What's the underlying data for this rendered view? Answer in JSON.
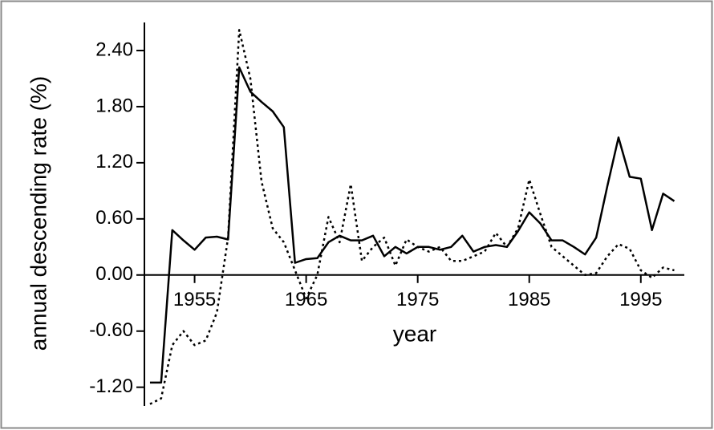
{
  "chart_data": {
    "type": "line",
    "xlabel": "year",
    "ylabel": "annual descending rate (%)",
    "x": [
      1951,
      1952,
      1953,
      1954,
      1955,
      1956,
      1957,
      1958,
      1959,
      1960,
      1961,
      1962,
      1963,
      1964,
      1965,
      1966,
      1967,
      1968,
      1969,
      1970,
      1971,
      1972,
      1973,
      1974,
      1975,
      1976,
      1977,
      1978,
      1979,
      1980,
      1981,
      1982,
      1983,
      1984,
      1985,
      1986,
      1987,
      1988,
      1989,
      1990,
      1991,
      1992,
      1993,
      1994,
      1995,
      1996,
      1997,
      1998
    ],
    "series": [
      {
        "color": "#000000",
        "line_style": "solid",
        "values": [
          -1.15,
          -1.15,
          0.48,
          0.37,
          0.27,
          0.4,
          0.41,
          0.38,
          2.22,
          1.96,
          1.85,
          1.75,
          1.58,
          0.13,
          0.17,
          0.18,
          0.35,
          0.42,
          0.37,
          0.37,
          0.42,
          0.2,
          0.3,
          0.23,
          0.3,
          0.3,
          0.27,
          0.3,
          0.42,
          0.25,
          0.3,
          0.32,
          0.3,
          0.47,
          0.67,
          0.55,
          0.37,
          0.37,
          0.3,
          0.22,
          0.4,
          0.95,
          1.47,
          1.05,
          1.03,
          0.48,
          0.87,
          0.79
        ]
      },
      {
        "color": "#000000",
        "line_style": "dotted",
        "values": [
          -1.38,
          -1.32,
          -0.75,
          -0.6,
          -0.75,
          -0.7,
          -0.4,
          0.4,
          2.62,
          2.1,
          1.0,
          0.5,
          0.35,
          0.05,
          -0.25,
          0.0,
          0.62,
          0.35,
          0.97,
          0.15,
          0.3,
          0.4,
          0.1,
          0.38,
          0.3,
          0.25,
          0.3,
          0.15,
          0.15,
          0.2,
          0.25,
          0.45,
          0.3,
          0.5,
          1.02,
          0.65,
          0.3,
          0.2,
          0.1,
          0.0,
          0.02,
          0.2,
          0.33,
          0.28,
          0.05,
          -0.03,
          0.08,
          0.05
        ]
      }
    ],
    "xlim": [
      1950.5,
      1998.9
    ],
    "xticks": [
      1955,
      1965,
      1975,
      1985,
      1995
    ],
    "ylim": [
      -1.4,
      2.7
    ],
    "yticks": [
      {
        "value": -1.2,
        "label": "-1.20"
      },
      {
        "value": -0.6,
        "label": "-0.60"
      },
      {
        "value": 0,
        "label": "0.00"
      },
      {
        "value": 0.6,
        "label": "0.60"
      },
      {
        "value": 1.2,
        "label": "1.20"
      },
      {
        "value": 1.8,
        "label": "1.80"
      },
      {
        "value": 2.4,
        "label": "2.40"
      }
    ],
    "grid": false
  }
}
